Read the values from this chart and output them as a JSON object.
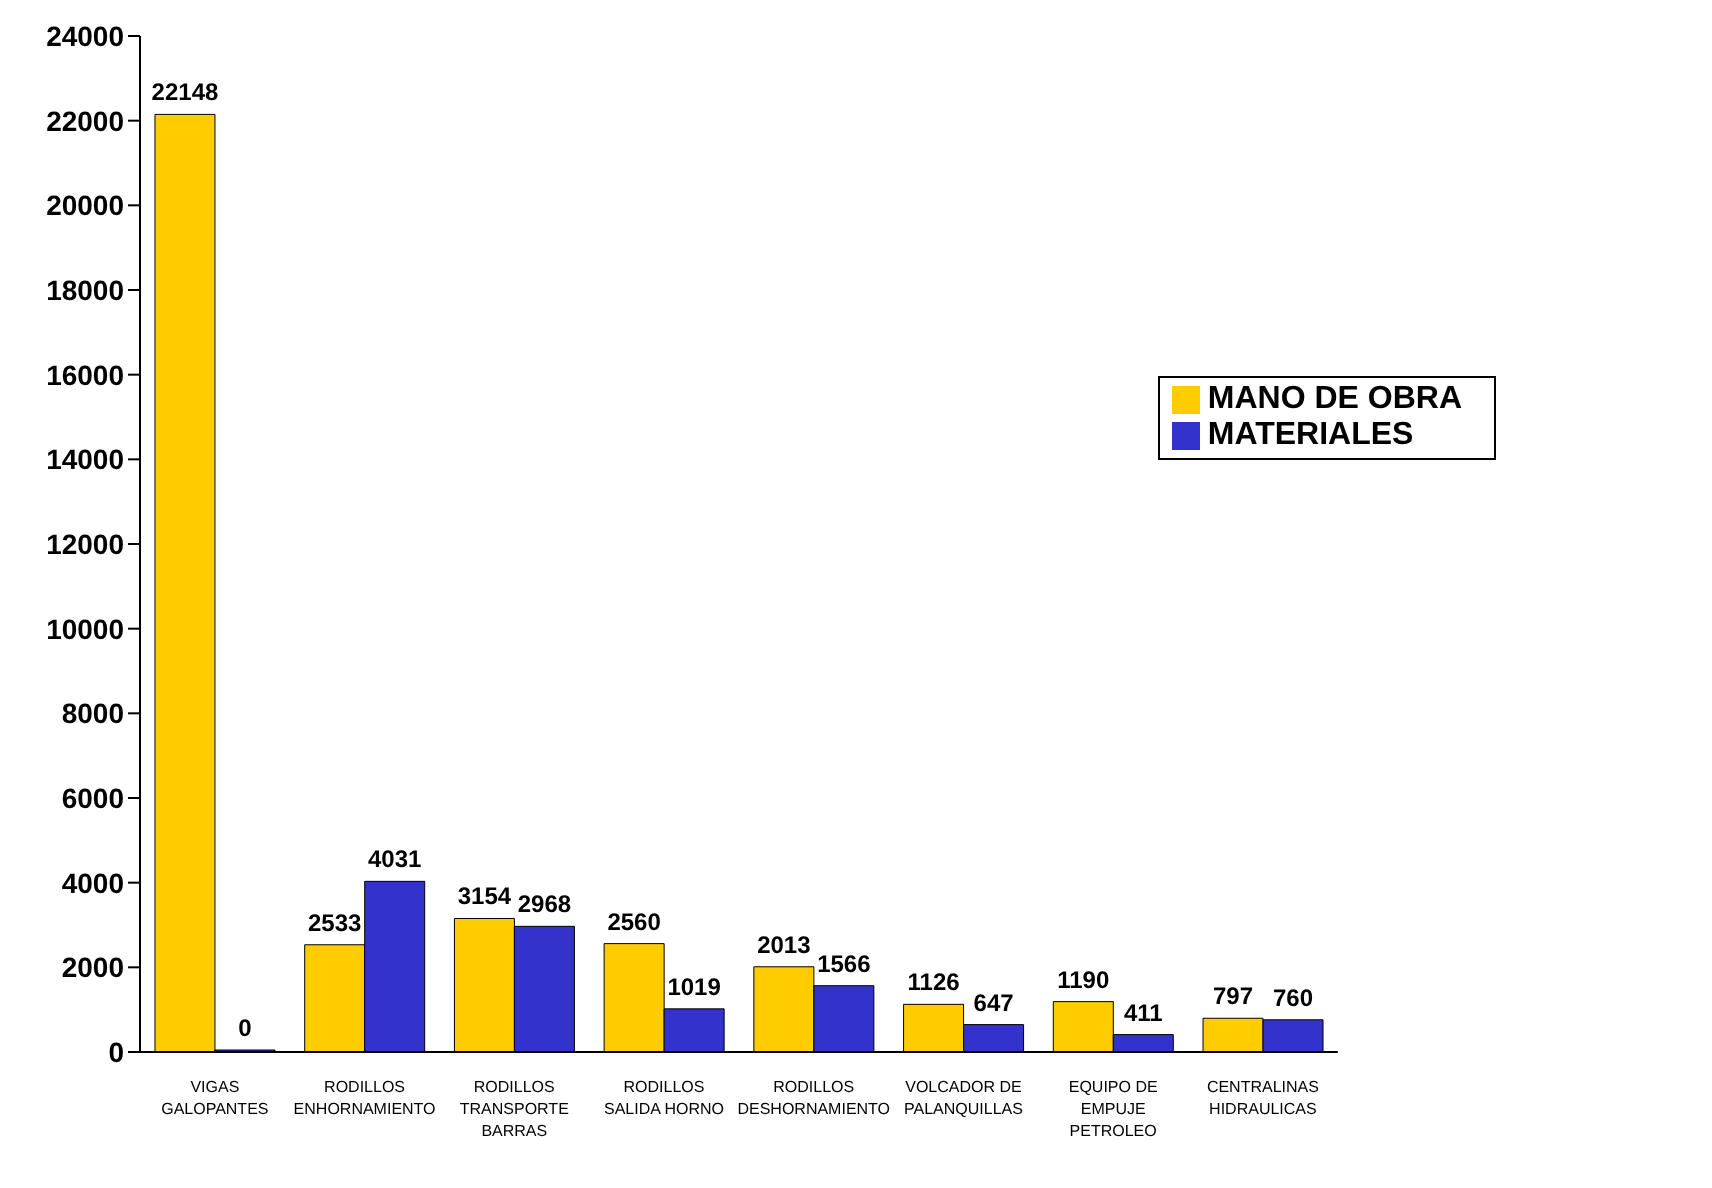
{
  "chart_data": {
    "type": "bar",
    "categories": [
      "VIGAS GALOPANTES",
      "RODILLOS ENHORNAMIENTO",
      "RODILLOS TRANSPORTE BARRAS",
      "RODILLOS SALIDA HORNO",
      "RODILLOS DESHORNAMIENTO",
      "VOLCADOR DE PALANQUILLAS",
      "EQUIPO DE EMPUJE PETROLEO",
      "CENTRALINAS HIDRAULICAS"
    ],
    "series": [
      {
        "name": "MANO DE OBRA",
        "color": "#ffcc00",
        "values": [
          22148,
          2533,
          3154,
          2560,
          2013,
          1126,
          1190,
          797
        ]
      },
      {
        "name": "MATERIALES",
        "color": "#3333cc",
        "values": [
          0,
          4031,
          2968,
          1019,
          1566,
          647,
          411,
          760
        ]
      }
    ],
    "ylim": [
      0,
      24000
    ],
    "yticks": [
      0,
      2000,
      4000,
      6000,
      8000,
      10000,
      12000,
      14000,
      16000,
      18000,
      20000,
      22000,
      24000
    ],
    "grid": false,
    "legend": "right",
    "data_labels": true
  }
}
